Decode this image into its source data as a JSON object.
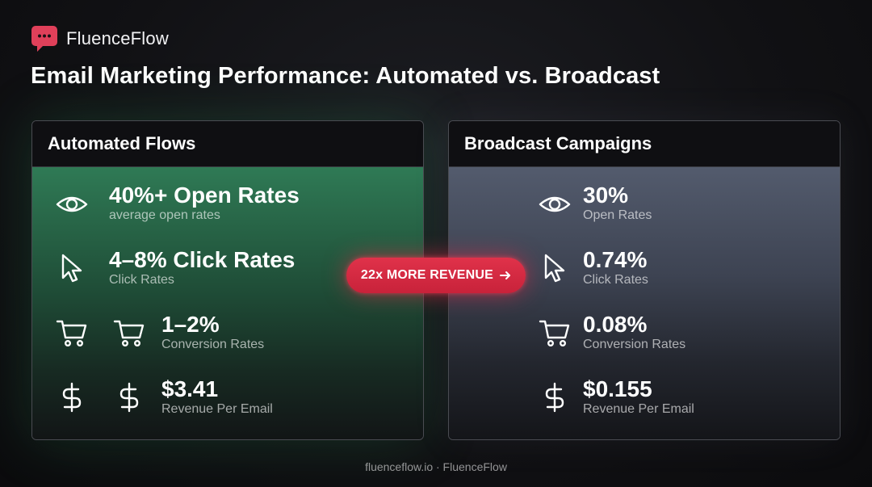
{
  "brand": {
    "name": "FluenceFlow",
    "logo_icon": "chat-bubble-icon",
    "logo_color": "#e0405a"
  },
  "headline": "Email Marketing Performance: Automated vs. Broadcast",
  "automated": {
    "title": "Automated Flows",
    "accent": "#2f7a55",
    "metrics": [
      {
        "icon": "eye-icon",
        "value": "40%+ Open Rates",
        "label": "average open rates"
      },
      {
        "icon": "cursor-icon",
        "value": "4–8% Click Rates",
        "label": "Click Rates"
      },
      {
        "icon": "cart-icon",
        "value": "1–2%",
        "label": "Conversion Rates"
      },
      {
        "icon": "dollar-icon",
        "value": "$3.41",
        "label": "Revenue Per Email"
      }
    ]
  },
  "broadcast": {
    "title": "Broadcast Campaigns",
    "accent": "#535b6d",
    "metrics": [
      {
        "icon": "eye-icon",
        "value": "30%",
        "label": "Open Rates"
      },
      {
        "icon": "cursor-icon",
        "value": "0.74%",
        "label": "Click Rates"
      },
      {
        "icon": "cart-icon",
        "value": "0.08%",
        "label": "Conversion Rates"
      },
      {
        "icon": "dollar-icon",
        "value": "$0.155",
        "label": "Revenue Per Email"
      }
    ]
  },
  "badge": {
    "text": "22x MORE REVENUE",
    "icon": "arrow-right-icon",
    "color": "#d92a44"
  },
  "footer": "fluenceflow.io · FluenceFlow"
}
